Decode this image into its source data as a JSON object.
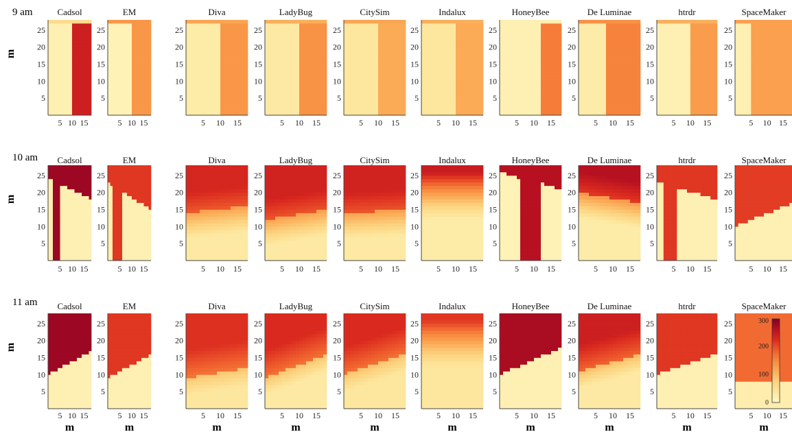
{
  "colors": {
    "scale": [
      "#FFF8C6",
      "#FDE8A0",
      "#FCD27E",
      "#FBAC58",
      "#F7893E",
      "#EE5A2C",
      "#DA2A1F",
      "#B40F21",
      "#800026"
    ]
  },
  "chart_data": {
    "type": "heatmap",
    "title": "",
    "simulators": [
      "Cadsol",
      "EM",
      "Diva",
      "LadyBug",
      "CitySim",
      "Indalux",
      "HoneyBee",
      "De Luminae",
      "htrdr",
      "SpaceMaker"
    ],
    "times": [
      {
        "label": "9 am"
      },
      {
        "label": "10 am"
      },
      {
        "label": "11 am"
      }
    ],
    "xlabel": "m",
    "ylabel": "m",
    "x_range": [
      0,
      18
    ],
    "y_range": [
      0,
      28
    ],
    "x_ticks": [
      "5",
      "10",
      "15"
    ],
    "y_ticks": [
      "5",
      "10",
      "15",
      "20",
      "25"
    ],
    "colorbar": {
      "min": 0,
      "max": 300,
      "ticks": [
        "0",
        "100",
        "200",
        "300"
      ]
    },
    "panels": [
      [
        {
          "name": "Cadsol",
          "kind": "split",
          "split_x": 10,
          "left": 20,
          "right": 240,
          "top_band": 60
        },
        {
          "name": "EM",
          "kind": "split",
          "split_x": 10,
          "left": 15,
          "right": 135,
          "top_band": 135
        },
        {
          "name": "Diva",
          "kind": "split",
          "split_x": 10,
          "left": 30,
          "right": 135,
          "top_band": 120
        },
        {
          "name": "LadyBug",
          "kind": "split",
          "split_x": 10,
          "left": 35,
          "right": 140,
          "top_band": 110
        },
        {
          "name": "CitySim",
          "kind": "split",
          "split_x": 10,
          "left": 40,
          "right": 115,
          "top_band": 120
        },
        {
          "name": "Indalux",
          "kind": "split",
          "split_x": 10,
          "left": 40,
          "right": 115,
          "top_band": 110
        },
        {
          "name": "HoneyBee",
          "kind": "split",
          "split_x": 12,
          "left": 20,
          "right": 160,
          "top_band": 20
        },
        {
          "name": "De Luminae",
          "kind": "split",
          "split_x": 8,
          "left": 30,
          "right": 155,
          "top_band": 140
        },
        {
          "name": "htrdr",
          "kind": "split",
          "split_x": 10,
          "left": 20,
          "right": 130,
          "top_band": 110
        },
        {
          "name": "SpaceMaker",
          "kind": "split",
          "split_x": 5,
          "left": 20,
          "right": 125,
          "top_band": 125
        }
      ],
      [
        {
          "name": "Cadsol",
          "kind": "shadow_column",
          "strip_x": [
            2,
            5
          ],
          "hi": 280,
          "lo": 20,
          "edge_left": 24,
          "edge_right": 18
        },
        {
          "name": "EM",
          "kind": "shadow_column",
          "strip_x": [
            2,
            6
          ],
          "hi": 215,
          "lo": 20,
          "edge_left": 23,
          "edge_right": 15
        },
        {
          "name": "Diva",
          "kind": "soft_shadow",
          "hi": 230,
          "lo": 35,
          "edge_left": 14,
          "edge_right": 16
        },
        {
          "name": "LadyBug",
          "kind": "soft_shadow",
          "hi": 235,
          "lo": 35,
          "edge_left": 12,
          "edge_right": 15
        },
        {
          "name": "CitySim",
          "kind": "soft_shadow",
          "hi": 235,
          "lo": 35,
          "edge_left": 14,
          "edge_right": 15
        },
        {
          "name": "Indalux",
          "kind": "gradient_top",
          "hi": 245,
          "lo": 30
        },
        {
          "name": "HoneyBee",
          "kind": "shadow_column",
          "strip_x": [
            6,
            12
          ],
          "hi": 260,
          "lo": 15,
          "edge_left": 26,
          "edge_right": 21
        },
        {
          "name": "De Luminae",
          "kind": "soft_shadow",
          "hi": 260,
          "lo": 30,
          "edge_left": 20,
          "edge_right": 17
        },
        {
          "name": "htrdr",
          "kind": "shadow_column",
          "strip_x": [
            2,
            6
          ],
          "hi": 215,
          "lo": 20,
          "edge_left": 23,
          "edge_right": 18
        },
        {
          "name": "SpaceMaker",
          "kind": "ramp",
          "hi": 210,
          "lo": 20,
          "edge_left": 10,
          "edge_right": 17
        }
      ],
      [
        {
          "name": "Cadsol",
          "kind": "ramp",
          "hi": 280,
          "lo": 20,
          "edge_left": 10,
          "edge_right": 17
        },
        {
          "name": "EM",
          "kind": "ramp",
          "hi": 215,
          "lo": 20,
          "edge_left": 9,
          "edge_right": 16
        },
        {
          "name": "Diva",
          "kind": "ramp_soft",
          "hi": 220,
          "lo": 40,
          "edge_left": 9,
          "edge_right": 12
        },
        {
          "name": "LadyBug",
          "kind": "ramp_soft",
          "hi": 225,
          "lo": 35,
          "edge_left": 9,
          "edge_right": 16
        },
        {
          "name": "CitySim",
          "kind": "ramp_soft",
          "hi": 225,
          "lo": 40,
          "edge_left": 10,
          "edge_right": 16
        },
        {
          "name": "Indalux",
          "kind": "gradient_top",
          "hi": 215,
          "lo": 40
        },
        {
          "name": "HoneyBee",
          "kind": "ramp",
          "hi": 270,
          "lo": 20,
          "edge_left": 10,
          "edge_right": 18
        },
        {
          "name": "De Luminae",
          "kind": "ramp_soft",
          "hi": 240,
          "lo": 35,
          "edge_left": 11,
          "edge_right": 16
        },
        {
          "name": "htrdr",
          "kind": "ramp",
          "hi": 215,
          "lo": 20,
          "edge_left": 10,
          "edge_right": 16
        },
        {
          "name": "SpaceMaker",
          "kind": "ramp",
          "hi": 175,
          "lo": 25,
          "edge_left": 8,
          "edge_right": 8
        }
      ]
    ]
  }
}
